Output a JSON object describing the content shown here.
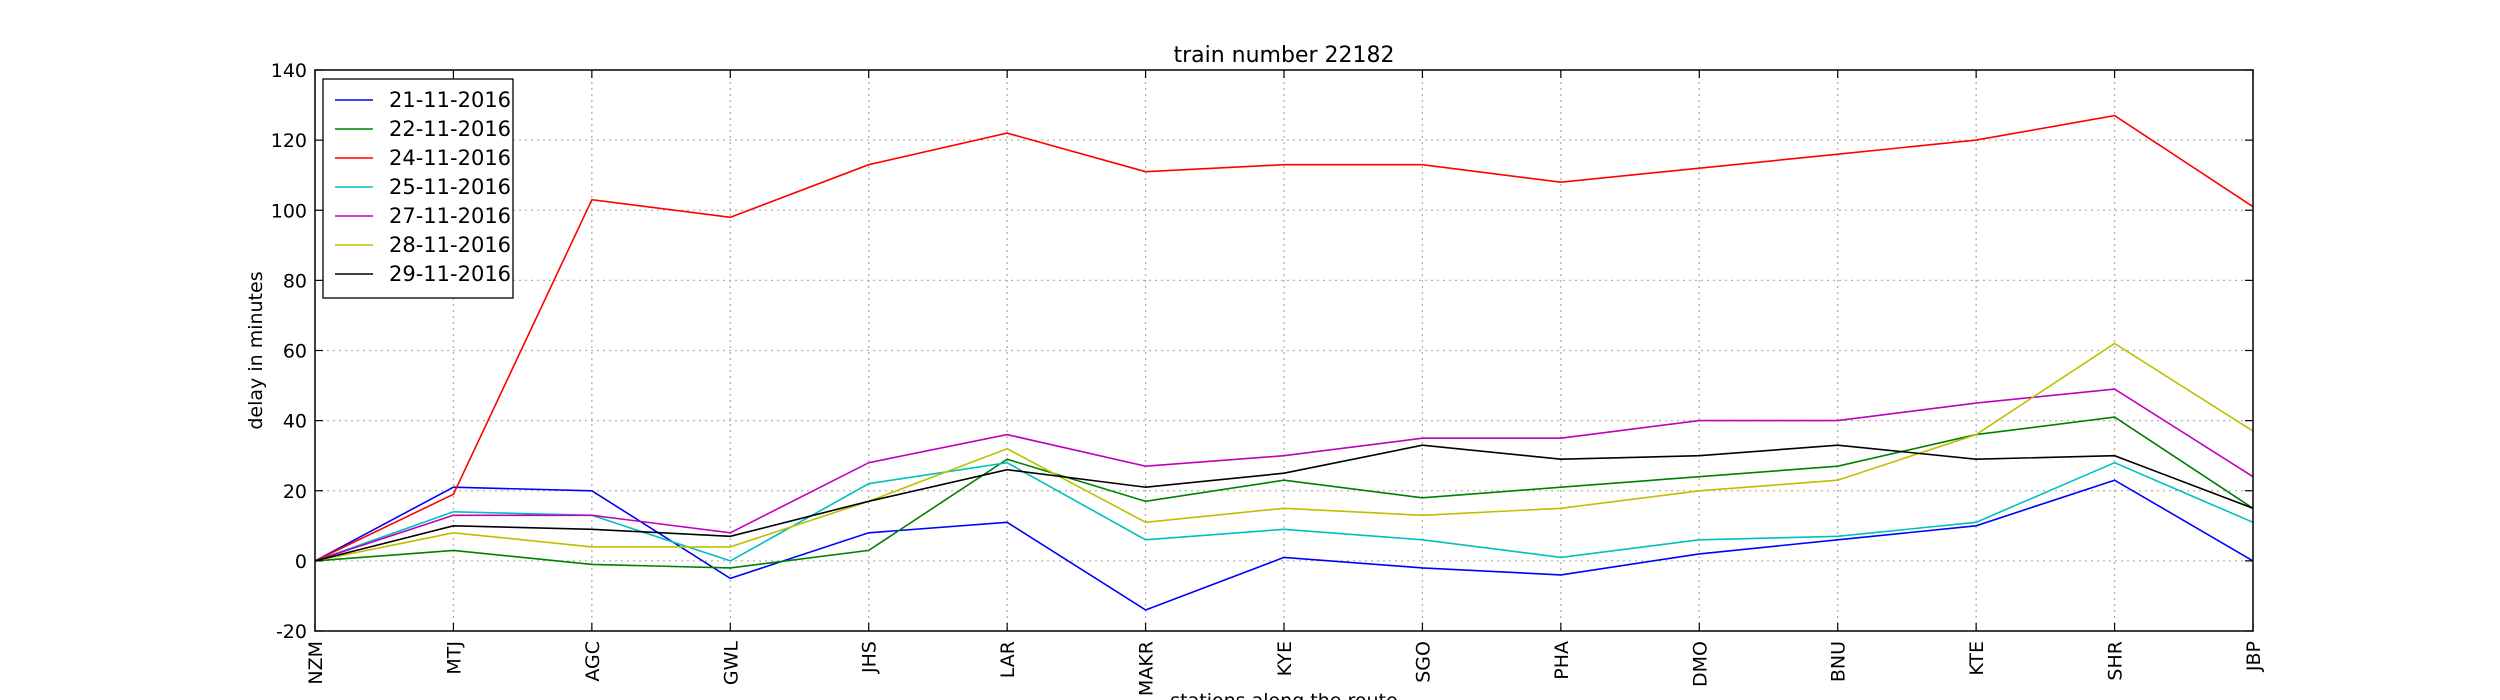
{
  "chart_data": {
    "type": "line",
    "title": "train number 22182",
    "xlabel": "stations along the route",
    "ylabel": "delay in minutes",
    "ylim": [
      -20,
      140
    ],
    "yticks": [
      -20,
      0,
      20,
      40,
      60,
      80,
      100,
      120,
      140
    ],
    "grid": true,
    "legend_position": "top-left",
    "categories": [
      "NZM",
      "MTJ",
      "AGC",
      "GWL",
      "JHS",
      "LAR",
      "MAKR",
      "KYE",
      "SGO",
      "PHA",
      "DMO",
      "BNU",
      "KTE",
      "SHR",
      "JBP"
    ],
    "series": [
      {
        "name": "21-11-2016",
        "color": "#0000ff",
        "values": [
          0,
          21,
          20,
          -5,
          8,
          11,
          -14,
          1,
          -2,
          -4,
          2,
          6,
          10,
          23,
          0
        ]
      },
      {
        "name": "22-11-2016",
        "color": "#008000",
        "values": [
          0,
          3,
          -1,
          -2,
          3,
          29,
          17,
          23,
          18,
          21,
          24,
          27,
          36,
          41,
          15
        ]
      },
      {
        "name": "24-11-2016",
        "color": "#ff0000",
        "values": [
          0,
          19,
          103,
          98,
          113,
          122,
          111,
          113,
          113,
          108,
          112,
          116,
          120,
          127,
          101
        ]
      },
      {
        "name": "25-11-2016",
        "color": "#00bfbf",
        "values": [
          0,
          14,
          13,
          0,
          22,
          28,
          6,
          9,
          6,
          1,
          6,
          7,
          11,
          28,
          11
        ]
      },
      {
        "name": "27-11-2016",
        "color": "#bf00bf",
        "values": [
          0,
          13,
          13,
          8,
          28,
          36,
          27,
          30,
          35,
          35,
          40,
          40,
          45,
          49,
          24
        ]
      },
      {
        "name": "28-11-2016",
        "color": "#bfbf00",
        "values": [
          0,
          8,
          4,
          4,
          17,
          32,
          11,
          15,
          13,
          15,
          20,
          23,
          36,
          62,
          37
        ]
      },
      {
        "name": "29-11-2016",
        "color": "#000000",
        "values": [
          0,
          10,
          9,
          7,
          17,
          26,
          21,
          25,
          33,
          29,
          30,
          33,
          29,
          30,
          15
        ]
      }
    ]
  }
}
